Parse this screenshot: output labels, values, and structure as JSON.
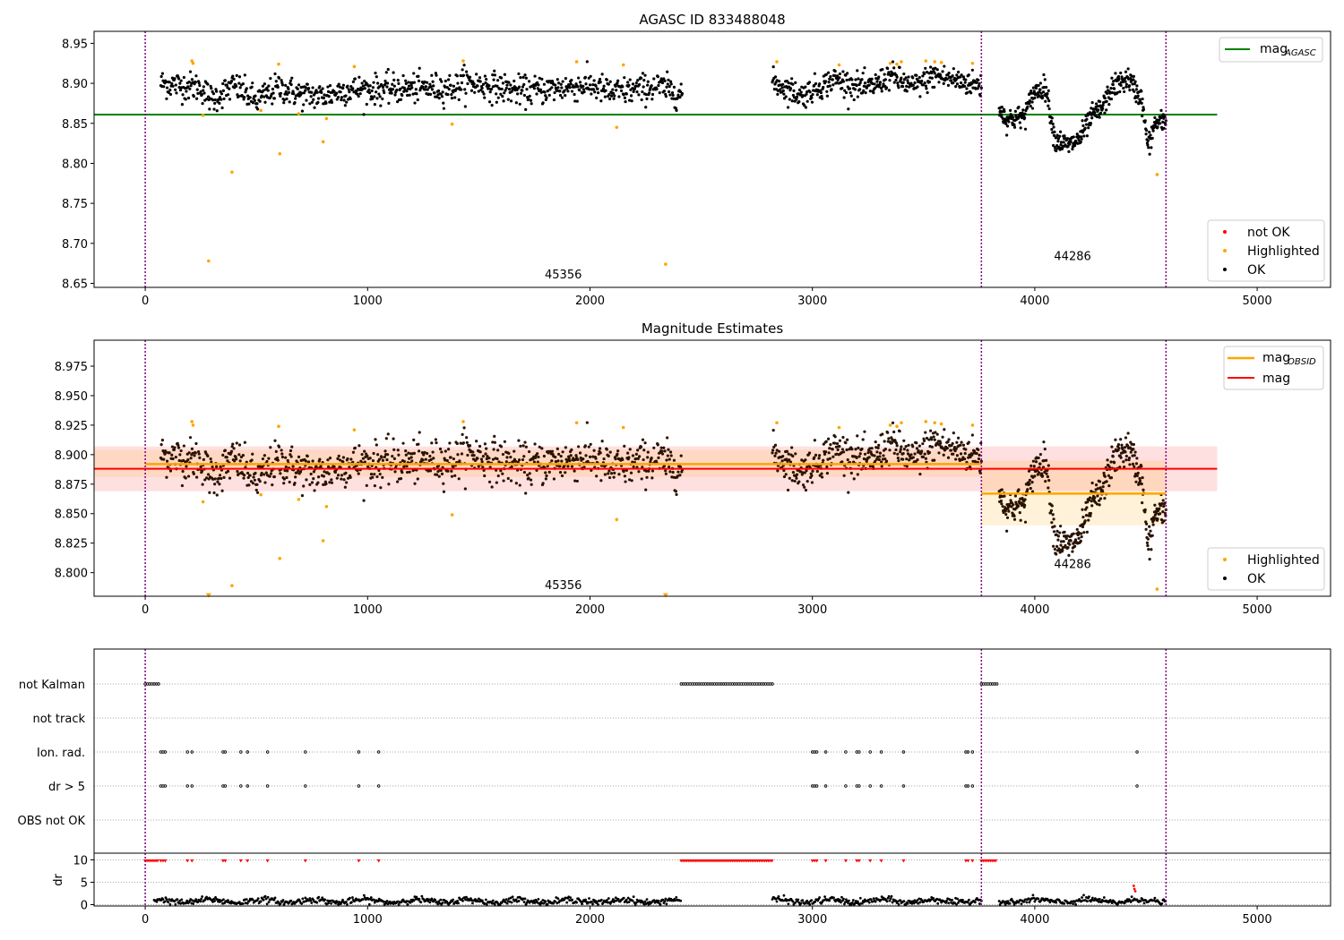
{
  "figure": {
    "background": "#ffffff"
  },
  "chart_data": [
    {
      "type": "scatter",
      "title": "AGASC ID 833488048",
      "xlabel": "",
      "ylabel": "",
      "xlim": [
        -230,
        5330
      ],
      "ylim": [
        8.645,
        8.965
      ],
      "xticks": [
        0,
        1000,
        2000,
        3000,
        4000,
        5000
      ],
      "xtick_labels": [
        "0",
        "1000",
        "2000",
        "3000",
        "4000",
        "5000"
      ],
      "yticks": [
        8.65,
        8.7,
        8.75,
        8.8,
        8.85,
        8.9,
        8.95
      ],
      "ytick_labels": [
        "8.65",
        "8.70",
        "8.75",
        "8.80",
        "8.85",
        "8.90",
        "8.95"
      ],
      "vlines": [
        0,
        3760,
        4590
      ],
      "obsid_labels": [
        {
          "text": "45356",
          "x": 1880,
          "y": 8.656
        },
        {
          "text": "44286",
          "x": 4170,
          "y": 8.679
        }
      ],
      "hlines": [
        {
          "name": "mag_AGASC",
          "y": 8.861,
          "x_range": [
            -230,
            4820
          ],
          "color": "#008000"
        }
      ],
      "legend_lines": [
        {
          "label": "mag",
          "sub": "AGASC",
          "color": "#008000"
        }
      ],
      "legend_markers": [
        {
          "label": "not OK",
          "color": "#ff0000"
        },
        {
          "label": "Highlighted",
          "color": "#ffa500"
        },
        {
          "label": "OK",
          "color": "#000000"
        }
      ],
      "series": [
        {
          "name": "OK",
          "color": "#000000",
          "segments": [
            {
              "x0": 70,
              "x1": 2415,
              "n": 900,
              "y": [
                [
                  70,
                  8.9
                ],
                [
                  250,
                  8.895
                ],
                [
                  300,
                  8.88
                ],
                [
                  400,
                  8.897
                ],
                [
                  500,
                  8.878
                ],
                [
                  600,
                  8.895
                ],
                [
                  700,
                  8.886
                ],
                [
                  800,
                  8.884
                ],
                [
                  900,
                  8.892
                ],
                [
                  1100,
                  8.893
                ],
                [
                  1400,
                  8.895
                ],
                [
                  1430,
                  8.902
                ],
                [
                  1700,
                  8.89
                ],
                [
                  2000,
                  8.898
                ],
                [
                  2100,
                  8.888
                ],
                [
                  2300,
                  8.896
                ],
                [
                  2415,
                  8.887
                ]
              ],
              "sd": 0.009
            },
            {
              "x0": 2820,
              "x1": 3760,
              "n": 400,
              "y": [
                [
                  2820,
                  8.902
                ],
                [
                  2950,
                  8.885
                ],
                [
                  3100,
                  8.905
                ],
                [
                  3250,
                  8.893
                ],
                [
                  3350,
                  8.91
                ],
                [
                  3450,
                  8.895
                ],
                [
                  3550,
                  8.91
                ],
                [
                  3760,
                  8.897
                ]
              ],
              "sd": 0.008
            },
            {
              "x0": 3840,
              "x1": 4590,
              "n": 420,
              "y": [
                [
                  3840,
                  8.87
                ],
                [
                  3870,
                  8.855
                ],
                [
                  3950,
                  8.858
                ],
                [
                  4000,
                  8.89
                ],
                [
                  4050,
                  8.895
                ],
                [
                  4090,
                  8.83
                ],
                [
                  4150,
                  8.822
                ],
                [
                  4200,
                  8.83
                ],
                [
                  4260,
                  8.86
                ],
                [
                  4300,
                  8.868
                ],
                [
                  4350,
                  8.895
                ],
                [
                  4420,
                  8.906
                ],
                [
                  4480,
                  8.88
                ],
                [
                  4510,
                  8.82
                ],
                [
                  4540,
                  8.85
                ],
                [
                  4590,
                  8.852
                ]
              ],
              "sd": 0.007
            }
          ]
        },
        {
          "name": "Highlighted",
          "color": "#ffa500",
          "points": [
            [
              210,
              8.928
            ],
            [
              215,
              8.925
            ],
            [
              260,
              8.86
            ],
            [
              285,
              8.678
            ],
            [
              390,
              8.789
            ],
            [
              520,
              8.866
            ],
            [
              600,
              8.924
            ],
            [
              605,
              8.812
            ],
            [
              690,
              8.862
            ],
            [
              800,
              8.827
            ],
            [
              815,
              8.856
            ],
            [
              940,
              8.921
            ],
            [
              1380,
              8.849
            ],
            [
              1430,
              8.928
            ],
            [
              1940,
              8.927
            ],
            [
              2120,
              8.845
            ],
            [
              2150,
              8.923
            ],
            [
              2340,
              8.674
            ],
            [
              2840,
              8.927
            ],
            [
              3120,
              8.923
            ],
            [
              3350,
              8.925
            ],
            [
              3380,
              8.924
            ],
            [
              3400,
              8.927
            ],
            [
              3510,
              8.928
            ],
            [
              3550,
              8.927
            ],
            [
              3580,
              8.926
            ],
            [
              3720,
              8.925
            ],
            [
              4550,
              8.786
            ]
          ]
        }
      ]
    },
    {
      "type": "scatter",
      "title": "Magnitude Estimates",
      "xlabel": "",
      "ylabel": "",
      "xlim": [
        -230,
        5330
      ],
      "ylim": [
        8.78,
        8.997
      ],
      "xticks": [
        0,
        1000,
        2000,
        3000,
        4000,
        5000
      ],
      "xtick_labels": [
        "0",
        "1000",
        "2000",
        "3000",
        "4000",
        "5000"
      ],
      "yticks": [
        8.8,
        8.825,
        8.85,
        8.875,
        8.9,
        8.925,
        8.95,
        8.975
      ],
      "ytick_labels": [
        "8.800",
        "8.825",
        "8.850",
        "8.875",
        "8.900",
        "8.925",
        "8.950",
        "8.975"
      ],
      "vlines": [
        0,
        3760,
        4590
      ],
      "obsid_labels": [
        {
          "text": "45356",
          "x": 1880,
          "y": 8.786
        },
        {
          "text": "44286",
          "x": 4170,
          "y": 8.804
        }
      ],
      "bands": [
        {
          "name": "mag-band",
          "x_range": [
            -230,
            4820
          ],
          "y_range": [
            8.869,
            8.907
          ],
          "color": "#ff0000",
          "opacity": 0.12
        },
        {
          "name": "mag-obsid-band-45356",
          "x_range": [
            -230,
            3760
          ],
          "y_range": [
            8.881,
            8.904
          ],
          "color": "#ffa500",
          "opacity": 0.12
        },
        {
          "name": "mag-obsid-band-44286",
          "x_range": [
            3760,
            4590
          ],
          "y_range": [
            8.84,
            8.895
          ],
          "color": "#ffa500",
          "opacity": 0.15
        }
      ],
      "hlines": [
        {
          "name": "mag_OBSID-45356",
          "y": 8.892,
          "x_range": [
            0,
            3760
          ],
          "color": "#ffa500"
        },
        {
          "name": "mag_OBSID-44286",
          "y": 8.867,
          "x_range": [
            3760,
            4590
          ],
          "color": "#ffa500"
        },
        {
          "name": "mag",
          "y": 8.888,
          "x_range": [
            -230,
            4820
          ],
          "color": "#ff0000"
        }
      ],
      "legend_lines": [
        {
          "label": "mag",
          "sub": "OBSID",
          "color": "#ffa500"
        },
        {
          "label": "mag",
          "sub": "",
          "color": "#ff0000"
        }
      ],
      "legend_markers": [
        {
          "label": "Highlighted",
          "color": "#ffa500"
        },
        {
          "label": "OK",
          "color": "#000000"
        }
      ],
      "series": [
        {
          "name": "OK",
          "color": "#000000",
          "reuse_from": 0
        },
        {
          "name": "Highlighted",
          "color": "#ffa500",
          "reuse_from": 0,
          "clip_markers": [
            [
              285,
              8.781
            ],
            [
              2340,
              8.781
            ]
          ]
        }
      ]
    },
    {
      "type": "scatter",
      "title": "",
      "xlabel": "",
      "ylabel": "",
      "xlim": [
        -230,
        5330
      ],
      "categories": [
        "not Kalman",
        "not track",
        "Ion. rad.",
        "dr > 5",
        "OBS not OK"
      ],
      "xticks": [
        0,
        1000,
        2000,
        3000,
        4000,
        5000
      ],
      "xtick_labels": [
        "0",
        "1000",
        "2000",
        "3000",
        "4000",
        "5000"
      ],
      "vlines": [
        0,
        3760,
        4590
      ],
      "flags": {
        "not Kalman": {
          "ranges": [
            [
              0,
              60
            ],
            [
              2410,
              2820
            ],
            [
              3760,
              3830
            ]
          ]
        },
        "not track": {
          "ranges": []
        },
        "Ion. rad.": {
          "points": [
            70,
            80,
            90,
            190,
            210,
            350,
            360,
            430,
            460,
            550,
            720,
            960,
            1050,
            3000,
            3010,
            3020,
            3060,
            3150,
            3200,
            3210,
            3260,
            3310,
            3410,
            3690,
            3700,
            3720,
            4460
          ]
        },
        "dr > 5": {
          "points": [
            70,
            80,
            90,
            190,
            210,
            350,
            360,
            430,
            460,
            550,
            720,
            960,
            1050,
            3000,
            3010,
            3020,
            3060,
            3150,
            3200,
            3210,
            3260,
            3310,
            3410,
            3690,
            3700,
            3720,
            4460
          ]
        },
        "OBS not OK": {
          "points": []
        }
      }
    },
    {
      "type": "scatter",
      "title": "",
      "xlabel": "",
      "ylabel": "dr",
      "xlim": [
        -230,
        5330
      ],
      "ylim": [
        -0.3,
        11.5
      ],
      "yticks": [
        0,
        5,
        10
      ],
      "ytick_labels": [
        "0",
        "5",
        "10"
      ],
      "xticks": [
        0,
        1000,
        2000,
        3000,
        4000,
        5000
      ],
      "xtick_labels": [
        "0",
        "1000",
        "2000",
        "3000",
        "4000",
        "5000"
      ],
      "vlines": [
        0,
        3760,
        4590
      ],
      "series": [
        {
          "name": "dr",
          "color": "#000000",
          "segments": [
            [
              40,
              2410
            ],
            [
              2820,
              3760
            ],
            [
              3840,
              4590
            ]
          ],
          "mean": 0.8
        },
        {
          "name": "clipped",
          "color": "#ff0000",
          "ranges": [
            [
              0,
              60
            ],
            [
              2410,
              2820
            ],
            [
              3760,
              3830
            ]
          ],
          "points": [
            70,
            80,
            90,
            190,
            210,
            350,
            360,
            430,
            460,
            550,
            720,
            960,
            1050,
            3000,
            3010,
            3020,
            3060,
            3150,
            3200,
            3210,
            3260,
            3310,
            3410,
            3690,
            3700,
            3720
          ],
          "value": 9.8
        },
        {
          "name": "spike",
          "color": "#ff0000",
          "points_xy": [
            [
              4445,
              4.2
            ],
            [
              4448,
              3.5
            ],
            [
              4452,
              3.0
            ]
          ]
        }
      ]
    }
  ]
}
